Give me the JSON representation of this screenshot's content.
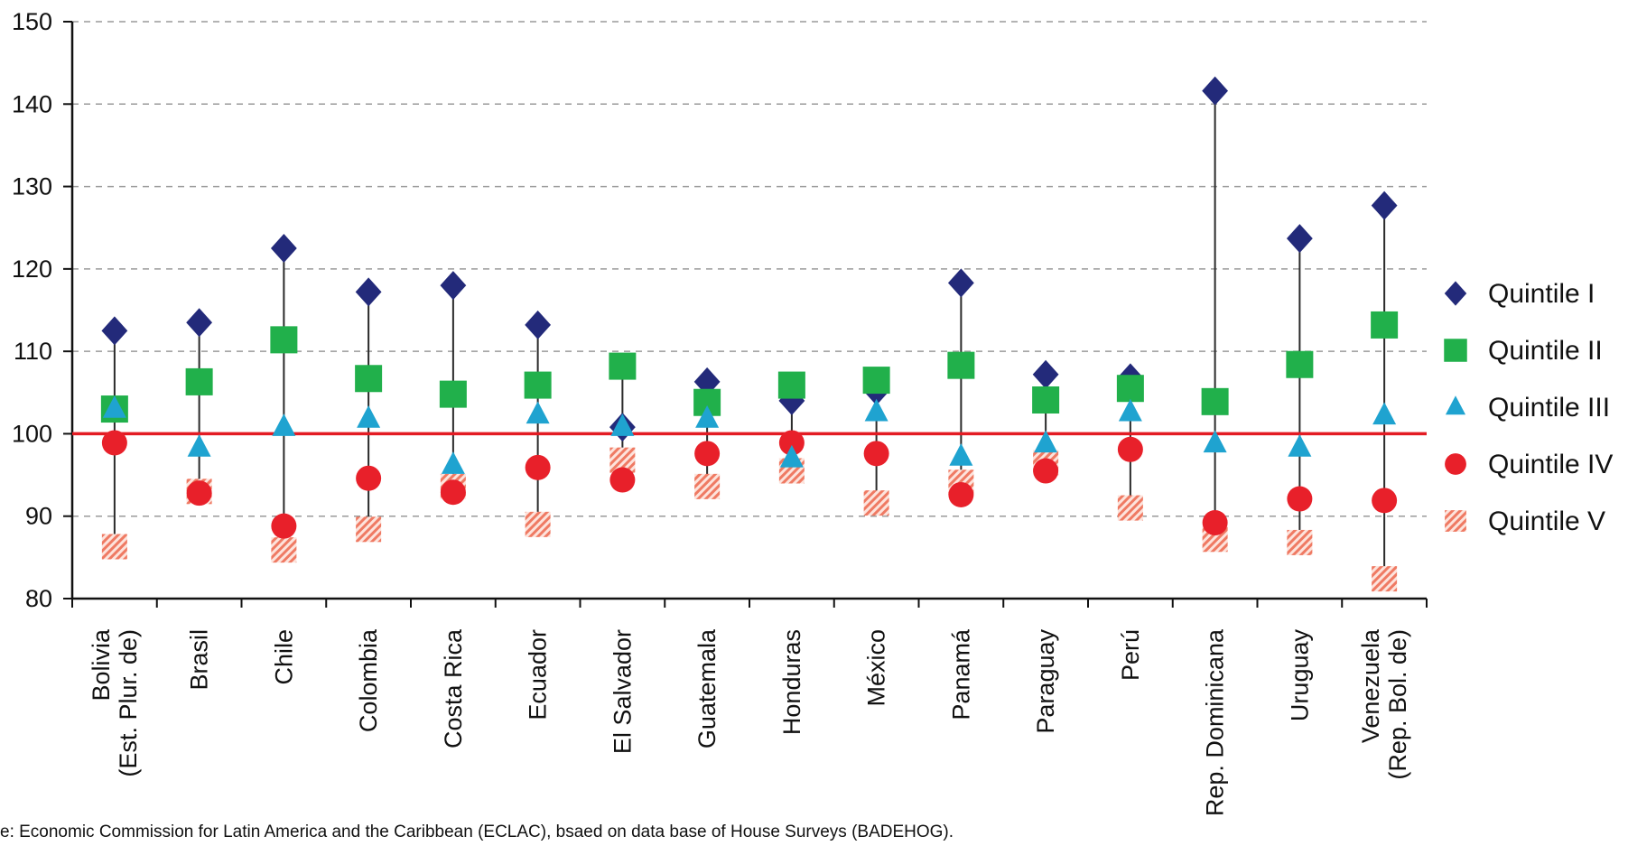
{
  "source_note": "e: Economic Commission for Latin America and the Caribbean (ECLAC), bsaed on data base of House Surveys (BADEHOG).",
  "chart_data": {
    "type": "scatter",
    "title": "",
    "xlabel": "",
    "ylabel": "",
    "ylim": [
      80,
      150
    ],
    "yticks": [
      80,
      90,
      100,
      110,
      120,
      130,
      140,
      150
    ],
    "grid": "horizontal dashed",
    "reference_line": {
      "y": 100,
      "color": "#e31b23"
    },
    "legend_position": "right",
    "categories": [
      [
        "Bolivia",
        "(Est. Plur. de)"
      ],
      [
        "Brasil"
      ],
      [
        "Chile"
      ],
      [
        "Colombia"
      ],
      [
        "Costa Rica"
      ],
      [
        "Ecuador"
      ],
      [
        "El Salvador"
      ],
      [
        "Guatemala"
      ],
      [
        "Honduras"
      ],
      [
        "México"
      ],
      [
        "Panamá"
      ],
      [
        "Paraguay"
      ],
      [
        "Perú"
      ],
      [
        "Rep. Dominicana"
      ],
      [
        "Uruguay"
      ],
      [
        "Venezuela",
        "(Rep. Bol. de)"
      ]
    ],
    "series": [
      {
        "name": "Quintile I",
        "marker": "diamond",
        "color": "#232a7a",
        "values": [
          112.5,
          113.5,
          122.5,
          117.2,
          118,
          113.2,
          100.8,
          106.3,
          104,
          105.2,
          118.3,
          107.2,
          106.8,
          141.6,
          123.7,
          127.7
        ]
      },
      {
        "name": "Quintile II",
        "marker": "square",
        "color": "#21b04b",
        "values": [
          103,
          106.3,
          111.4,
          106.7,
          104.8,
          105.9,
          108.2,
          103.8,
          105.9,
          106.5,
          108.3,
          104.1,
          105.5,
          103.9,
          108.4,
          113.2
        ]
      },
      {
        "name": "Quintile III",
        "marker": "triangle",
        "color": "#1fa3d0",
        "values": [
          103,
          98.3,
          100.8,
          101.8,
          96.2,
          102.3,
          100.8,
          101.8,
          97,
          102.6,
          97.2,
          98.8,
          102.6,
          98.8,
          98.3,
          102.2
        ]
      },
      {
        "name": "Quintile IV",
        "marker": "circle",
        "color": "#e8202a",
        "values": [
          98.9,
          92.8,
          88.8,
          94.6,
          92.9,
          95.9,
          94.4,
          97.6,
          98.9,
          97.6,
          92.6,
          95.5,
          98.1,
          89.2,
          92.1,
          91.9
        ]
      },
      {
        "name": "Quintile V",
        "marker": "hatched-square",
        "color": "#f0806a",
        "values": [
          86.3,
          93,
          85.9,
          88.4,
          93.6,
          89,
          96.8,
          93.6,
          95.5,
          91.6,
          94.1,
          96.5,
          91,
          87.2,
          86.8,
          82.4
        ]
      }
    ]
  }
}
